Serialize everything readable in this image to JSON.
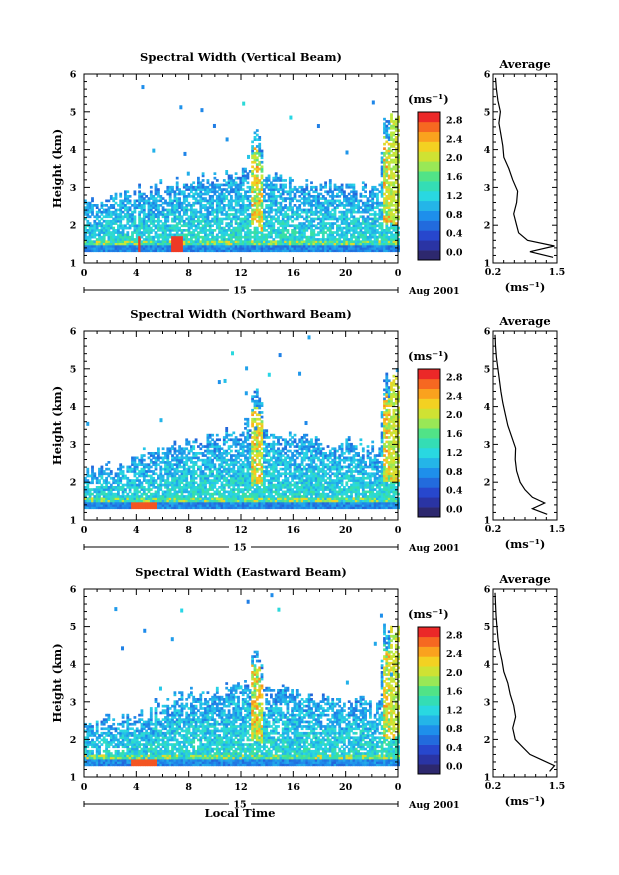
{
  "chart_data": [
    {
      "type": "heatmap",
      "title": "Spectral Width (Vertical Beam)",
      "xlabel": "",
      "ylabel": "Height (km)",
      "xlim": [
        0,
        24
      ],
      "ylim": [
        1,
        6
      ],
      "xticks": [
        "0",
        "4",
        "8",
        "12",
        "16",
        "20",
        "0"
      ],
      "yticks": [
        "1",
        "2",
        "3",
        "4",
        "5",
        "6"
      ],
      "day_label": "15",
      "date_label": "Aug 2001",
      "colorbar": {
        "unit": "(ms⁻¹)",
        "min": 0.0,
        "max": 3.0,
        "ticks": [
          "0.0",
          "0.4",
          "0.8",
          "1.2",
          "1.6",
          "2.0",
          "2.4",
          "2.8"
        ]
      },
      "average": {
        "title": "Average",
        "xlabel": "(ms⁻¹)",
        "xlim": [
          0.2,
          1.5
        ],
        "xticks": [
          "0.2",
          "1.5"
        ],
        "heights": [
          1.15,
          1.3,
          1.45,
          1.6,
          1.8,
          2.0,
          2.3,
          2.6,
          2.9,
          3.2,
          3.5,
          3.8,
          4.1,
          4.4,
          4.7,
          5.0,
          5.3,
          5.6,
          5.9
        ],
        "values": [
          1.42,
          0.95,
          1.45,
          0.9,
          0.72,
          0.68,
          0.62,
          0.68,
          0.7,
          0.6,
          0.52,
          0.42,
          0.4,
          0.36,
          0.32,
          0.35,
          0.3,
          0.27,
          0.25
        ]
      }
    },
    {
      "type": "heatmap",
      "title": "Spectral Width (Northward Beam)",
      "xlabel": "",
      "ylabel": "Height (km)",
      "xlim": [
        0,
        24
      ],
      "ylim": [
        1,
        6
      ],
      "xticks": [
        "0",
        "4",
        "8",
        "12",
        "16",
        "20",
        "0"
      ],
      "yticks": [
        "1",
        "2",
        "3",
        "4",
        "5",
        "6"
      ],
      "day_label": "15",
      "date_label": "Aug 2001",
      "colorbar": {
        "unit": "(ms⁻¹)",
        "min": 0.0,
        "max": 3.0,
        "ticks": [
          "0.0",
          "0.4",
          "0.8",
          "1.2",
          "1.6",
          "2.0",
          "2.4",
          "2.8"
        ]
      },
      "average": {
        "title": "Average",
        "xlabel": "(ms⁻¹)",
        "xlim": [
          0.2,
          1.5
        ],
        "xticks": [
          "0.2",
          "1.5"
        ],
        "heights": [
          1.15,
          1.3,
          1.45,
          1.6,
          1.8,
          2.0,
          2.3,
          2.6,
          2.9,
          3.2,
          3.5,
          3.8,
          4.1,
          4.4,
          4.7,
          5.0,
          5.3,
          5.6,
          5.9
        ],
        "values": [
          1.3,
          1.0,
          1.25,
          1.0,
          0.85,
          0.75,
          0.68,
          0.65,
          0.66,
          0.58,
          0.5,
          0.45,
          0.4,
          0.36,
          0.33,
          0.3,
          0.27,
          0.25,
          0.24
        ]
      }
    },
    {
      "type": "heatmap",
      "title": "Spectral Width (Eastward Beam)",
      "xlabel": "Local Time",
      "ylabel": "Height (km)",
      "xlim": [
        0,
        24
      ],
      "ylim": [
        1,
        6
      ],
      "xticks": [
        "0",
        "4",
        "8",
        "12",
        "16",
        "20",
        "0"
      ],
      "yticks": [
        "1",
        "2",
        "3",
        "4",
        "5",
        "6"
      ],
      "day_label": "15",
      "date_label": "Aug 2001",
      "colorbar": {
        "unit": "(ms⁻¹)",
        "min": 0.0,
        "max": 3.0,
        "ticks": [
          "0.0",
          "0.4",
          "0.8",
          "1.2",
          "1.6",
          "2.0",
          "2.4",
          "2.8"
        ]
      },
      "average": {
        "title": "Average",
        "xlabel": "(ms⁻¹)",
        "xlim": [
          0.2,
          1.5
        ],
        "xticks": [
          "0.2",
          "1.5"
        ],
        "heights": [
          1.15,
          1.3,
          1.45,
          1.6,
          1.8,
          2.0,
          2.3,
          2.6,
          2.9,
          3.2,
          3.5,
          3.8,
          4.1,
          4.4,
          4.7,
          5.0,
          5.3,
          5.6,
          5.9
        ],
        "values": [
          1.35,
          1.45,
          1.2,
          0.95,
          0.8,
          0.65,
          0.6,
          0.66,
          0.62,
          0.55,
          0.5,
          0.42,
          0.38,
          0.33,
          0.3,
          0.28,
          0.26,
          0.25,
          0.24
        ]
      }
    }
  ]
}
